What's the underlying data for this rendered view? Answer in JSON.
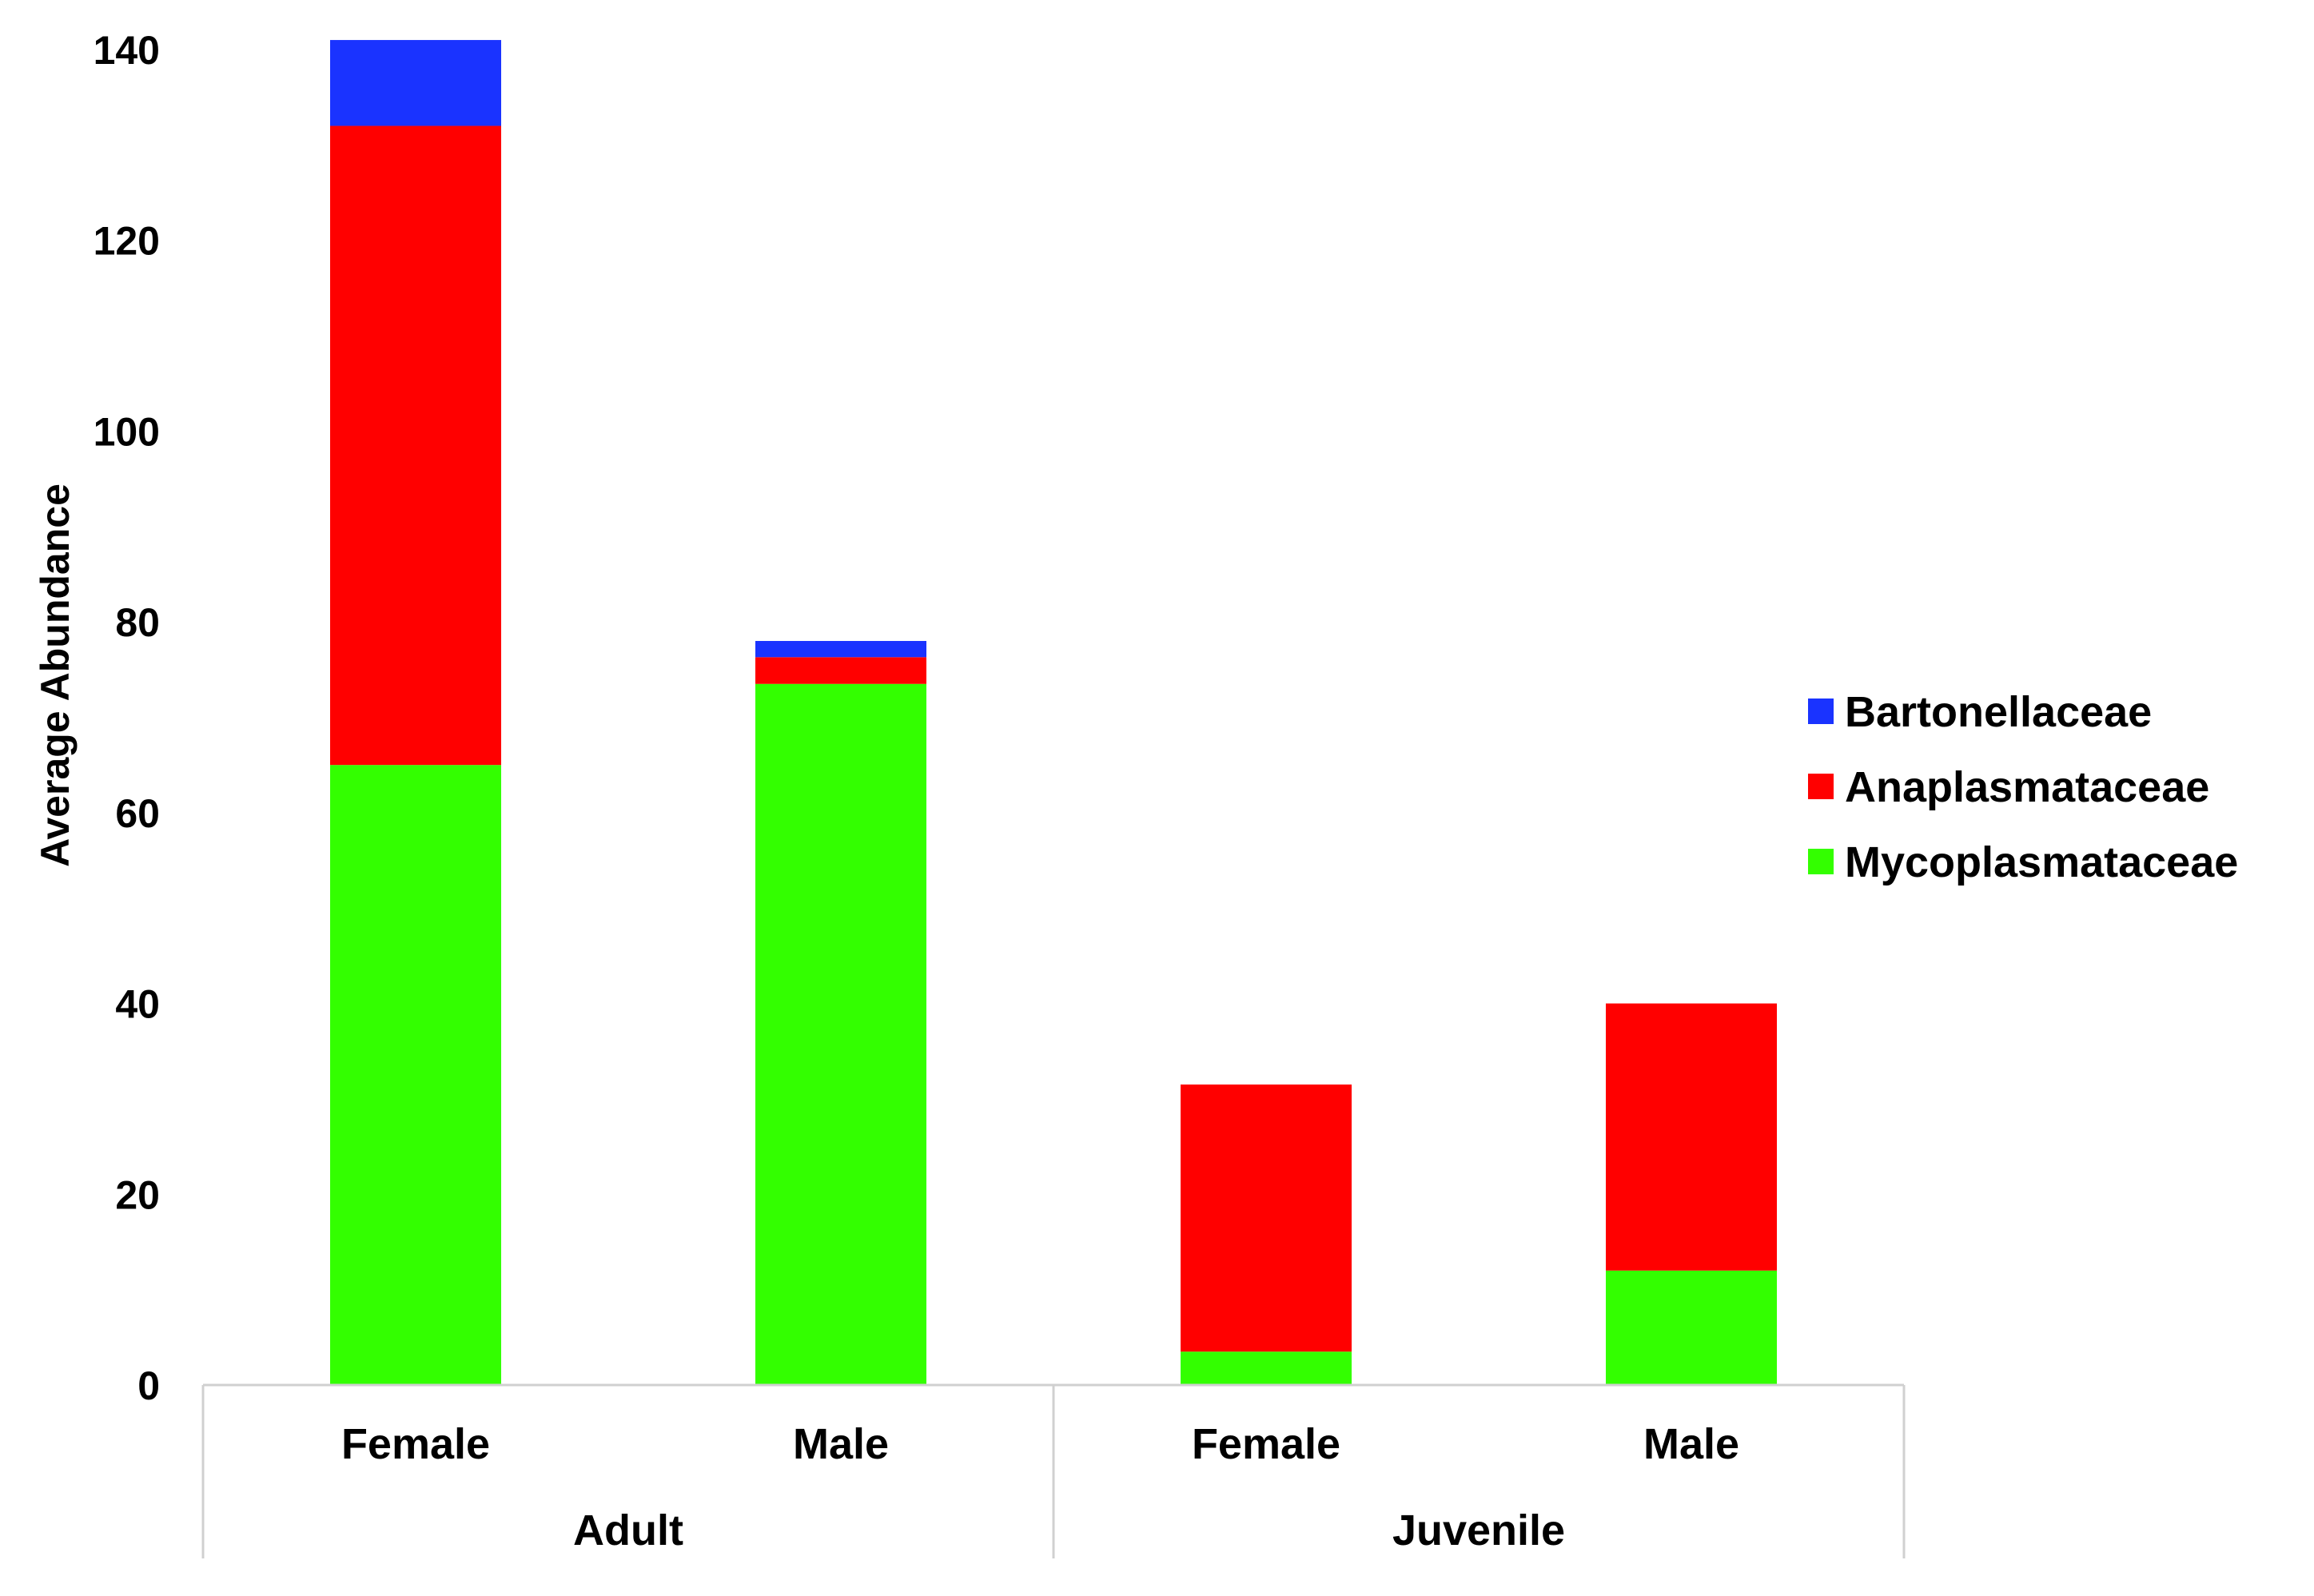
{
  "chart_data": {
    "type": "bar",
    "stacked": true,
    "groups": [
      {
        "label": "Adult",
        "categories": [
          "Female",
          "Male"
        ]
      },
      {
        "label": "Juvenile",
        "categories": [
          "Female",
          "Male"
        ]
      }
    ],
    "categories": [
      "Female",
      "Male",
      "Female",
      "Male"
    ],
    "series": [
      {
        "name": "Mycoplasmataceae",
        "color": "#33ff00",
        "values": [
          65,
          73.5,
          3.5,
          12
        ]
      },
      {
        "name": "Anaplasmataceae",
        "color": "#ff0000",
        "values": [
          67,
          2.8,
          28,
          28
        ]
      },
      {
        "name": "Bartonellaceae",
        "color": "#1a33ff",
        "values": [
          9,
          1.7,
          0,
          0
        ]
      }
    ],
    "legend_order": [
      "Bartonellaceae",
      "Anaplasmataceae",
      "Mycoplasmataceae"
    ],
    "legend_position": "right",
    "ylabel": "Average Abundance",
    "xlabel": "",
    "ylim": [
      0,
      140
    ],
    "yticks": [
      0,
      20,
      40,
      60,
      80,
      100,
      120,
      140
    ],
    "grid": false
  }
}
